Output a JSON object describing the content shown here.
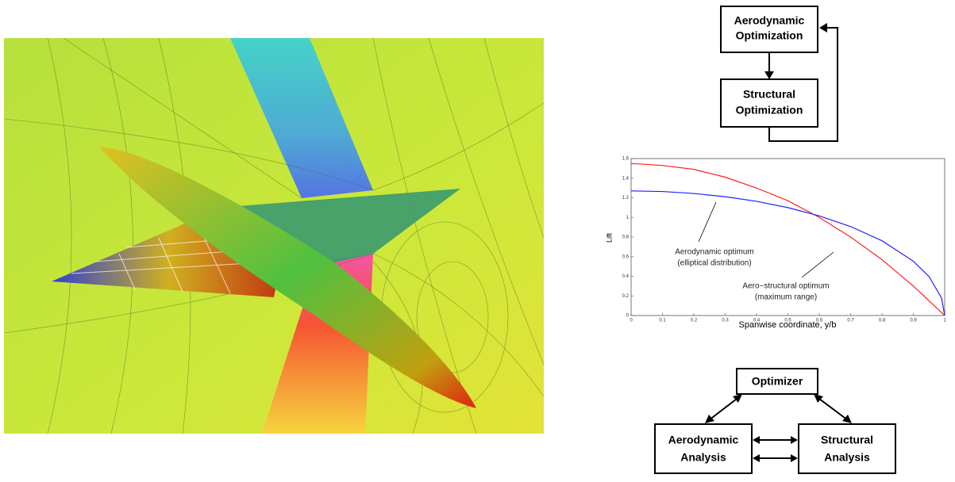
{
  "top_diagram": {
    "nodes": [
      {
        "label": [
          "Aerodynamic",
          "Optimization"
        ]
      },
      {
        "label": [
          "Structural",
          "Optimization"
        ]
      }
    ]
  },
  "chart_data": {
    "type": "line",
    "xlabel": "Spanwise coordinate, y/b",
    "ylabel": "Lift",
    "x": [
      0,
      0.1,
      0.2,
      0.3,
      0.4,
      0.5,
      0.6,
      0.7,
      0.8,
      0.9,
      0.95,
      0.99,
      1
    ],
    "series": [
      {
        "color": "#ff2020",
        "values": [
          1.55,
          1.53,
          1.49,
          1.41,
          1.3,
          1.17,
          1.0,
          0.8,
          0.57,
          0.3,
          0.15,
          0.03,
          0
        ]
      },
      {
        "color": "#2020ff",
        "values": [
          1.27,
          1.264,
          1.244,
          1.211,
          1.164,
          1.1,
          1.016,
          0.907,
          0.762,
          0.554,
          0.397,
          0.179,
          0
        ]
      }
    ],
    "xlim": [
      0,
      1
    ],
    "xticks": [
      0,
      0.1,
      0.2,
      0.3,
      0.4,
      0.5,
      0.6,
      0.7,
      0.8,
      0.9,
      1
    ],
    "ylim": [
      0,
      1.6
    ],
    "yticks": [
      0,
      0.2,
      0.4,
      0.6,
      0.8,
      1,
      1.2,
      1.4,
      1.6
    ],
    "annotations": [
      {
        "lines": [
          "Aerodynamic optimum",
          "(elliptical distribution)"
        ]
      },
      {
        "lines": [
          "Aero−structural optimum",
          "(maximum range)"
        ]
      }
    ]
  },
  "bottom_diagram": {
    "nodes": [
      {
        "label": [
          "Optimizer"
        ]
      },
      {
        "label": [
          "Aerodynamic",
          "Analysis"
        ]
      },
      {
        "label": [
          "Structural",
          "Analysis"
        ]
      }
    ]
  }
}
